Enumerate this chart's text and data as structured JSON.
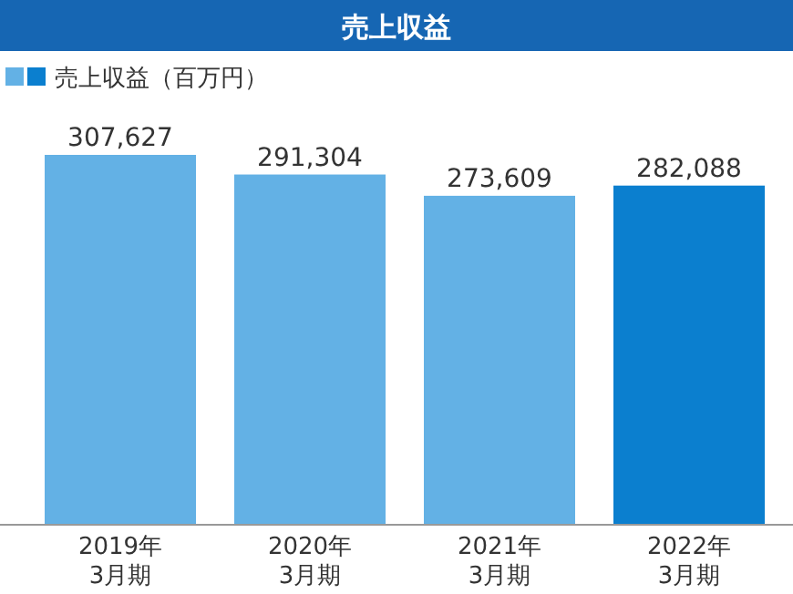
{
  "chart_data": {
    "type": "bar",
    "title": "売上収益",
    "categories": [
      "2019年\n3月期",
      "2020年\n3月期",
      "2021年\n3月期",
      "2022年\n3月期"
    ],
    "series": [
      {
        "name": "売上収益（百万円）",
        "values": [
          307627,
          291304,
          273609,
          282088
        ],
        "value_labels": [
          "307,627",
          "291,304",
          "273,609",
          "282,088"
        ]
      }
    ],
    "colors": [
      "#63b1e5",
      "#63b1e5",
      "#63b1e5",
      "#0b7fcf"
    ],
    "legend": "top left"
  }
}
